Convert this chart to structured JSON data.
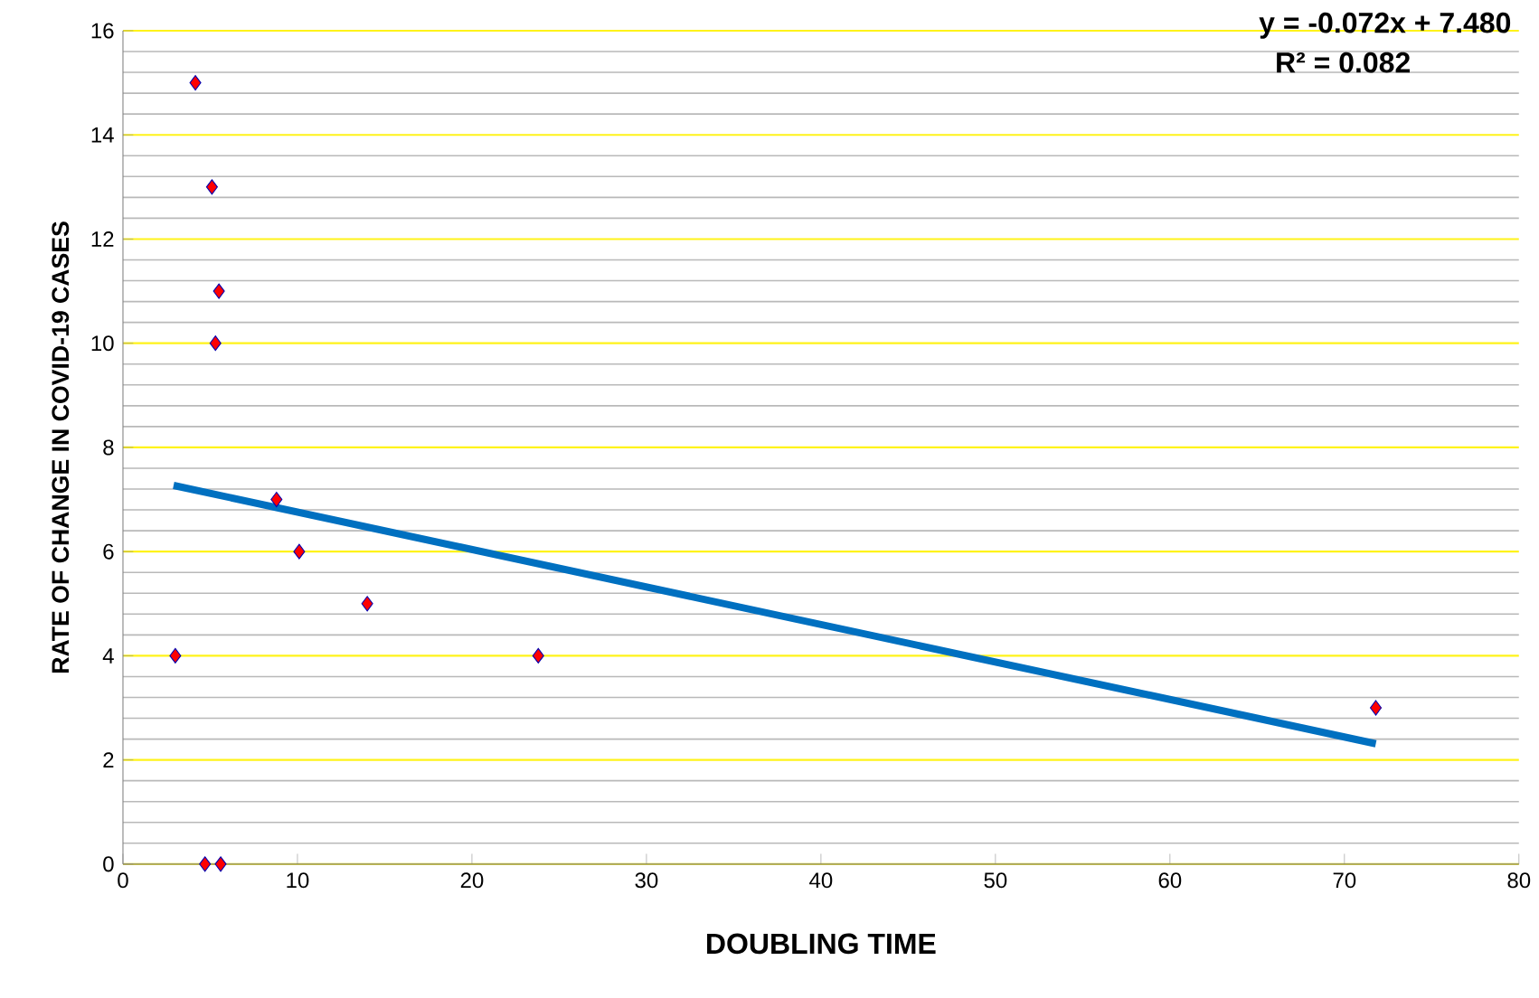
{
  "chart_data": {
    "type": "scatter",
    "xlabel": "DOUBLING TIME",
    "ylabel": "RATE OF CHANGE IN COVID-19 CASES",
    "xlim": [
      0,
      80
    ],
    "xticks": [
      0,
      10,
      20,
      30,
      40,
      50,
      60,
      70,
      80
    ],
    "ylim": [
      0,
      16
    ],
    "yticks": [
      0,
      2,
      4,
      6,
      8,
      10,
      12,
      14,
      16
    ],
    "grid": "y",
    "annotations": [
      "y = -0.072x + 7.480",
      "R² = 0.082"
    ],
    "series": [
      {
        "marker": "diamond",
        "color": "#ff0000",
        "x": [
          4.15,
          5.1,
          5.5,
          5.3,
          8.8,
          10.1,
          14.0,
          3.0,
          23.8,
          71.8,
          4.7,
          5.6
        ],
        "values": [
          15,
          13,
          11,
          10,
          7,
          6,
          5,
          4,
          4,
          3,
          0,
          0
        ]
      },
      {
        "type": "line",
        "marker": "none",
        "color": "#0070c0",
        "x": [
          2.9,
          71.8
        ],
        "values": [
          7.27,
          2.31
        ]
      }
    ]
  }
}
